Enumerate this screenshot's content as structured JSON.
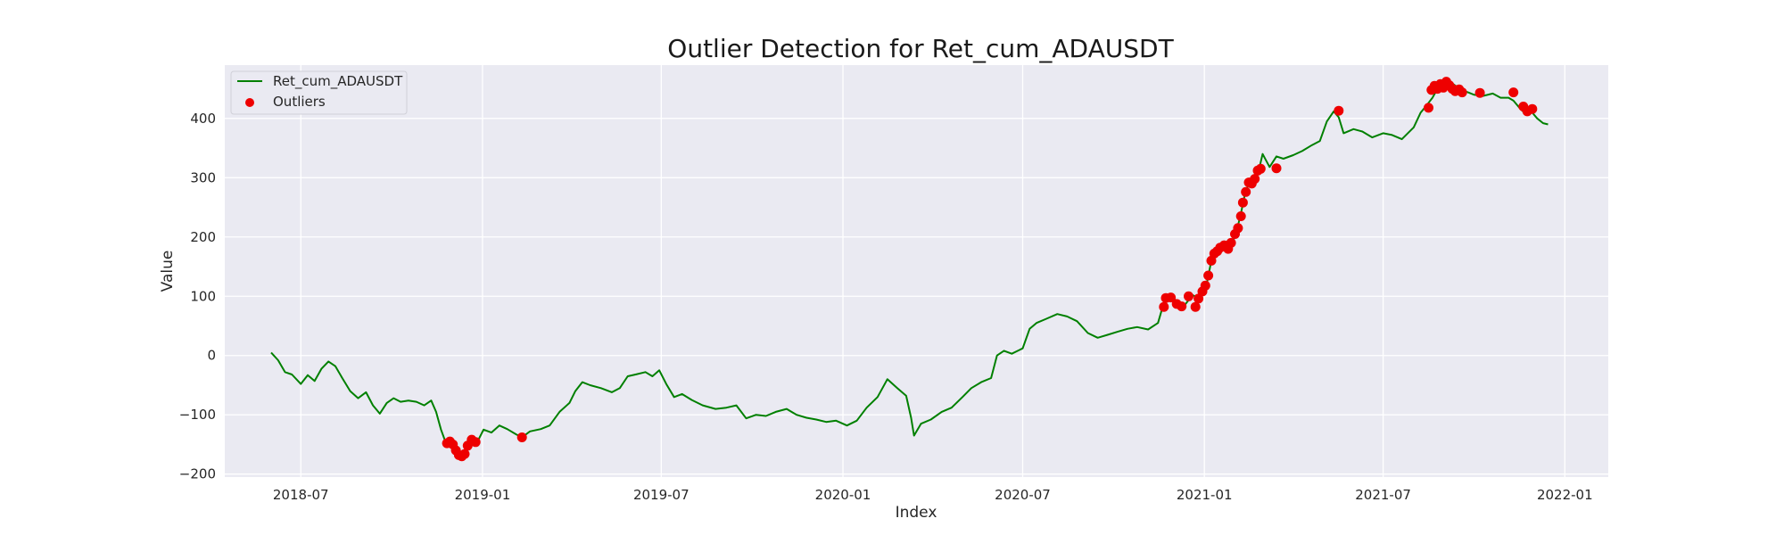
{
  "chart_data": {
    "type": "line",
    "title": "Outlier Detection for Ret_cum_ADAUSDT",
    "xlabel": "Index",
    "ylabel": "Value",
    "xlim": [
      "2018-04-15",
      "2022-02-14"
    ],
    "ylim": [
      -205,
      490
    ],
    "grid": true,
    "legend_position": "top-left",
    "x_ticks": [
      "2018-07",
      "2019-01",
      "2019-07",
      "2020-01",
      "2020-07",
      "2021-01",
      "2021-07",
      "2022-01"
    ],
    "y_ticks": [
      -200,
      -100,
      0,
      100,
      200,
      300,
      400
    ],
    "series": [
      {
        "name": "Ret_cum_ADAUSDT",
        "kind": "line",
        "color": "#008000",
        "points": [
          [
            "2018-06-01",
            5
          ],
          [
            "2018-06-08",
            -8
          ],
          [
            "2018-06-15",
            -28
          ],
          [
            "2018-06-22",
            -32
          ],
          [
            "2018-07-01",
            -48
          ],
          [
            "2018-07-08",
            -33
          ],
          [
            "2018-07-15",
            -43
          ],
          [
            "2018-07-22",
            -22
          ],
          [
            "2018-07-29",
            -10
          ],
          [
            "2018-08-05",
            -18
          ],
          [
            "2018-08-12",
            -38
          ],
          [
            "2018-08-20",
            -60
          ],
          [
            "2018-08-28",
            -72
          ],
          [
            "2018-09-05",
            -62
          ],
          [
            "2018-09-12",
            -84
          ],
          [
            "2018-09-19",
            -98
          ],
          [
            "2018-09-26",
            -80
          ],
          [
            "2018-10-03",
            -72
          ],
          [
            "2018-10-10",
            -78
          ],
          [
            "2018-10-18",
            -76
          ],
          [
            "2018-10-26",
            -78
          ],
          [
            "2018-11-03",
            -84
          ],
          [
            "2018-11-10",
            -76
          ],
          [
            "2018-11-15",
            -95
          ],
          [
            "2018-11-20",
            -125
          ],
          [
            "2018-11-25",
            -148
          ],
          [
            "2018-11-29",
            -145
          ],
          [
            "2018-12-03",
            -155
          ],
          [
            "2018-12-07",
            -166
          ],
          [
            "2018-12-11",
            -170
          ],
          [
            "2018-12-15",
            -168
          ],
          [
            "2018-12-19",
            -150
          ],
          [
            "2018-12-23",
            -140
          ],
          [
            "2018-12-27",
            -145
          ],
          [
            "2019-01-02",
            -125
          ],
          [
            "2019-01-10",
            -130
          ],
          [
            "2019-01-18",
            -118
          ],
          [
            "2019-01-26",
            -124
          ],
          [
            "2019-02-04",
            -133
          ],
          [
            "2019-02-10",
            -138
          ],
          [
            "2019-02-18",
            -128
          ],
          [
            "2019-03-01",
            -124
          ],
          [
            "2019-03-10",
            -118
          ],
          [
            "2019-03-20",
            -95
          ],
          [
            "2019-03-30",
            -80
          ],
          [
            "2019-04-05",
            -60
          ],
          [
            "2019-04-12",
            -45
          ],
          [
            "2019-04-20",
            -50
          ],
          [
            "2019-05-01",
            -55
          ],
          [
            "2019-05-12",
            -62
          ],
          [
            "2019-05-20",
            -55
          ],
          [
            "2019-05-28",
            -35
          ],
          [
            "2019-06-05",
            -32
          ],
          [
            "2019-06-15",
            -28
          ],
          [
            "2019-06-22",
            -35
          ],
          [
            "2019-06-29",
            -25
          ],
          [
            "2019-07-06",
            -48
          ],
          [
            "2019-07-14",
            -70
          ],
          [
            "2019-07-22",
            -65
          ],
          [
            "2019-08-01",
            -75
          ],
          [
            "2019-08-12",
            -84
          ],
          [
            "2019-08-25",
            -90
          ],
          [
            "2019-09-05",
            -88
          ],
          [
            "2019-09-15",
            -84
          ],
          [
            "2019-09-25",
            -106
          ],
          [
            "2019-10-05",
            -100
          ],
          [
            "2019-10-15",
            -102
          ],
          [
            "2019-10-25",
            -95
          ],
          [
            "2019-11-05",
            -90
          ],
          [
            "2019-11-15",
            -100
          ],
          [
            "2019-11-25",
            -105
          ],
          [
            "2019-12-05",
            -108
          ],
          [
            "2019-12-15",
            -112
          ],
          [
            "2019-12-25",
            -110
          ],
          [
            "2020-01-05",
            -118
          ],
          [
            "2020-01-15",
            -110
          ],
          [
            "2020-01-25",
            -88
          ],
          [
            "2020-02-05",
            -70
          ],
          [
            "2020-02-15",
            -40
          ],
          [
            "2020-02-25",
            -55
          ],
          [
            "2020-03-05",
            -68
          ],
          [
            "2020-03-10",
            -105
          ],
          [
            "2020-03-13",
            -135
          ],
          [
            "2020-03-20",
            -115
          ],
          [
            "2020-03-30",
            -108
          ],
          [
            "2020-04-10",
            -95
          ],
          [
            "2020-04-20",
            -88
          ],
          [
            "2020-05-01",
            -70
          ],
          [
            "2020-05-10",
            -55
          ],
          [
            "2020-05-20",
            -45
          ],
          [
            "2020-05-30",
            -38
          ],
          [
            "2020-06-05",
            0
          ],
          [
            "2020-06-12",
            8
          ],
          [
            "2020-06-20",
            3
          ],
          [
            "2020-07-01",
            12
          ],
          [
            "2020-07-08",
            45
          ],
          [
            "2020-07-15",
            55
          ],
          [
            "2020-07-25",
            62
          ],
          [
            "2020-08-05",
            70
          ],
          [
            "2020-08-15",
            66
          ],
          [
            "2020-08-25",
            58
          ],
          [
            "2020-09-05",
            38
          ],
          [
            "2020-09-15",
            30
          ],
          [
            "2020-09-25",
            35
          ],
          [
            "2020-10-05",
            40
          ],
          [
            "2020-10-15",
            45
          ],
          [
            "2020-10-25",
            48
          ],
          [
            "2020-11-05",
            44
          ],
          [
            "2020-11-15",
            55
          ],
          [
            "2020-11-22",
            95
          ],
          [
            "2020-11-28",
            98
          ],
          [
            "2020-12-05",
            92
          ],
          [
            "2020-12-12",
            85
          ],
          [
            "2020-12-20",
            102
          ],
          [
            "2020-12-28",
            95
          ],
          [
            "2021-01-03",
            118
          ],
          [
            "2021-01-08",
            160
          ],
          [
            "2021-01-13",
            175
          ],
          [
            "2021-01-18",
            182
          ],
          [
            "2021-01-24",
            186
          ],
          [
            "2021-01-30",
            192
          ],
          [
            "2021-02-03",
            212
          ],
          [
            "2021-02-07",
            240
          ],
          [
            "2021-02-11",
            272
          ],
          [
            "2021-02-15",
            290
          ],
          [
            "2021-02-20",
            298
          ],
          [
            "2021-02-25",
            312
          ],
          [
            "2021-03-01",
            340
          ],
          [
            "2021-03-08",
            318
          ],
          [
            "2021-03-15",
            336
          ],
          [
            "2021-03-22",
            332
          ],
          [
            "2021-04-01",
            338
          ],
          [
            "2021-04-10",
            345
          ],
          [
            "2021-04-20",
            355
          ],
          [
            "2021-04-28",
            362
          ],
          [
            "2021-05-05",
            395
          ],
          [
            "2021-05-12",
            412
          ],
          [
            "2021-05-17",
            402
          ],
          [
            "2021-05-22",
            375
          ],
          [
            "2021-06-01",
            382
          ],
          [
            "2021-06-10",
            378
          ],
          [
            "2021-06-20",
            368
          ],
          [
            "2021-07-01",
            375
          ],
          [
            "2021-07-10",
            372
          ],
          [
            "2021-07-20",
            365
          ],
          [
            "2021-08-01",
            385
          ],
          [
            "2021-08-08",
            410
          ],
          [
            "2021-08-14",
            422
          ],
          [
            "2021-08-20",
            435
          ],
          [
            "2021-08-25",
            450
          ],
          [
            "2021-08-31",
            455
          ],
          [
            "2021-09-05",
            462
          ],
          [
            "2021-09-10",
            458
          ],
          [
            "2021-09-18",
            448
          ],
          [
            "2021-09-25",
            444
          ],
          [
            "2021-10-01",
            440
          ],
          [
            "2021-10-10",
            438
          ],
          [
            "2021-10-20",
            442
          ],
          [
            "2021-10-28",
            435
          ],
          [
            "2021-11-05",
            435
          ],
          [
            "2021-11-10",
            430
          ],
          [
            "2021-11-16",
            418
          ],
          [
            "2021-11-22",
            408
          ],
          [
            "2021-11-28",
            412
          ],
          [
            "2021-12-04",
            400
          ],
          [
            "2021-12-10",
            392
          ],
          [
            "2021-12-15",
            390
          ]
        ]
      },
      {
        "name": "Outliers",
        "kind": "scatter",
        "color": "#ee0000",
        "points": [
          [
            "2018-11-26",
            -148
          ],
          [
            "2018-11-29",
            -145
          ],
          [
            "2018-12-02",
            -150
          ],
          [
            "2018-12-05",
            -160
          ],
          [
            "2018-12-08",
            -168
          ],
          [
            "2018-12-11",
            -170
          ],
          [
            "2018-12-14",
            -166
          ],
          [
            "2018-12-17",
            -152
          ],
          [
            "2018-12-21",
            -142
          ],
          [
            "2018-12-25",
            -146
          ],
          [
            "2019-02-10",
            -138
          ],
          [
            "2020-11-21",
            82
          ],
          [
            "2020-11-23",
            97
          ],
          [
            "2020-11-28",
            98
          ],
          [
            "2020-12-04",
            87
          ],
          [
            "2020-12-09",
            83
          ],
          [
            "2020-12-16",
            100
          ],
          [
            "2020-12-23",
            82
          ],
          [
            "2020-12-26",
            96
          ],
          [
            "2020-12-30",
            108
          ],
          [
            "2021-01-02",
            118
          ],
          [
            "2021-01-05",
            135
          ],
          [
            "2021-01-08",
            160
          ],
          [
            "2021-01-11",
            172
          ],
          [
            "2021-01-14",
            176
          ],
          [
            "2021-01-17",
            182
          ],
          [
            "2021-01-21",
            186
          ],
          [
            "2021-01-25",
            180
          ],
          [
            "2021-01-28",
            190
          ],
          [
            "2021-02-01",
            205
          ],
          [
            "2021-02-04",
            215
          ],
          [
            "2021-02-07",
            235
          ],
          [
            "2021-02-09",
            258
          ],
          [
            "2021-02-12",
            276
          ],
          [
            "2021-02-15",
            292
          ],
          [
            "2021-02-18",
            290
          ],
          [
            "2021-02-21",
            298
          ],
          [
            "2021-02-24",
            312
          ],
          [
            "2021-02-27",
            315
          ],
          [
            "2021-03-15",
            316
          ],
          [
            "2021-05-17",
            413
          ],
          [
            "2021-08-16",
            418
          ],
          [
            "2021-08-19",
            448
          ],
          [
            "2021-08-22",
            455
          ],
          [
            "2021-08-25",
            450
          ],
          [
            "2021-08-28",
            458
          ],
          [
            "2021-08-31",
            452
          ],
          [
            "2021-09-03",
            462
          ],
          [
            "2021-09-06",
            456
          ],
          [
            "2021-09-09",
            450
          ],
          [
            "2021-09-12",
            446
          ],
          [
            "2021-09-16",
            449
          ],
          [
            "2021-09-19",
            444
          ],
          [
            "2021-10-07",
            443
          ],
          [
            "2021-11-10",
            444
          ],
          [
            "2021-11-20",
            420
          ],
          [
            "2021-11-24",
            412
          ],
          [
            "2021-11-29",
            416
          ]
        ]
      }
    ]
  }
}
